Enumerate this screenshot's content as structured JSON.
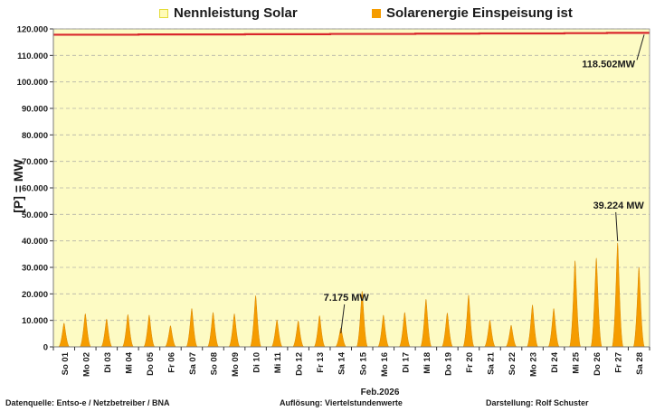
{
  "chart_data": {
    "type": "area",
    "title": "",
    "xlabel": "Feb.2026",
    "ylabel": "[P]  =  MW",
    "ylim": [
      0,
      120000
    ],
    "yticks": [
      "0",
      "10.000",
      "20.000",
      "30.000",
      "40.000",
      "50.000",
      "60.000",
      "70.000",
      "80.000",
      "90.000",
      "100.000",
      "110.000",
      "120.000"
    ],
    "categories": [
      "So 01",
      "Mo 02",
      "Di 03",
      "Mi 04",
      "Do 05",
      "Fr 06",
      "Sa 07",
      "So 08",
      "Mo 09",
      "Di 10",
      "Mi 11",
      "Do 12",
      "Fr 13",
      "Sa 14",
      "So 15",
      "Mo 16",
      "Di 17",
      "Mi 18",
      "Do 19",
      "Fr 20",
      "Sa 21",
      "So 22",
      "Mo 23",
      "Di 24",
      "Mi 25",
      "Do 26",
      "Fr 27",
      "Sa 28"
    ],
    "series": [
      {
        "name": "Nennleistung Solar",
        "kind": "line",
        "color": "#d9262c",
        "values": [
          117800,
          117800,
          117800,
          117800,
          117900,
          117900,
          117900,
          117900,
          117900,
          118000,
          118000,
          118000,
          118000,
          118100,
          118100,
          118100,
          118100,
          118200,
          118200,
          118200,
          118300,
          118300,
          118300,
          118300,
          118400,
          118400,
          118500,
          118502
        ]
      },
      {
        "name": "Solarenergie Einspeisung ist",
        "kind": "daily-peaks",
        "color": "#f59c00",
        "values": [
          9000,
          12500,
          10500,
          12200,
          12000,
          8000,
          14500,
          13000,
          12500,
          19300,
          10200,
          9800,
          11800,
          7175,
          21000,
          12000,
          13000,
          18000,
          12800,
          19500,
          10100,
          8200,
          15800,
          14500,
          32500,
          33500,
          39224,
          30000
        ]
      }
    ],
    "annotations": [
      {
        "text": "118.502MW",
        "series": 0,
        "index": 27
      },
      {
        "text": "7.175 MW",
        "series": 1,
        "index": 13
      },
      {
        "text": "39.224 MW",
        "series": 1,
        "index": 26
      }
    ],
    "grid": true,
    "legend": "top"
  },
  "colors": {
    "plot_background": "#fdfbc4",
    "grid": "#b5b5a8",
    "capacity_line": "#d9262c",
    "solar_fill": "#f59c00",
    "legend_capacity_fill": "#fffbb8",
    "legend_capacity_border": "#e4dc3a"
  },
  "legend": {
    "items": [
      {
        "label": "Nennleistung Solar"
      },
      {
        "label": "Solarenergie Einspeisung ist"
      }
    ]
  },
  "footer": {
    "source": "Datenquelle:  Entso-e  / Netzbetreiber / BNA",
    "resolution": "Auflösung: Viertelstundenwerte",
    "author": "Darstellung:  Rolf Schuster"
  }
}
